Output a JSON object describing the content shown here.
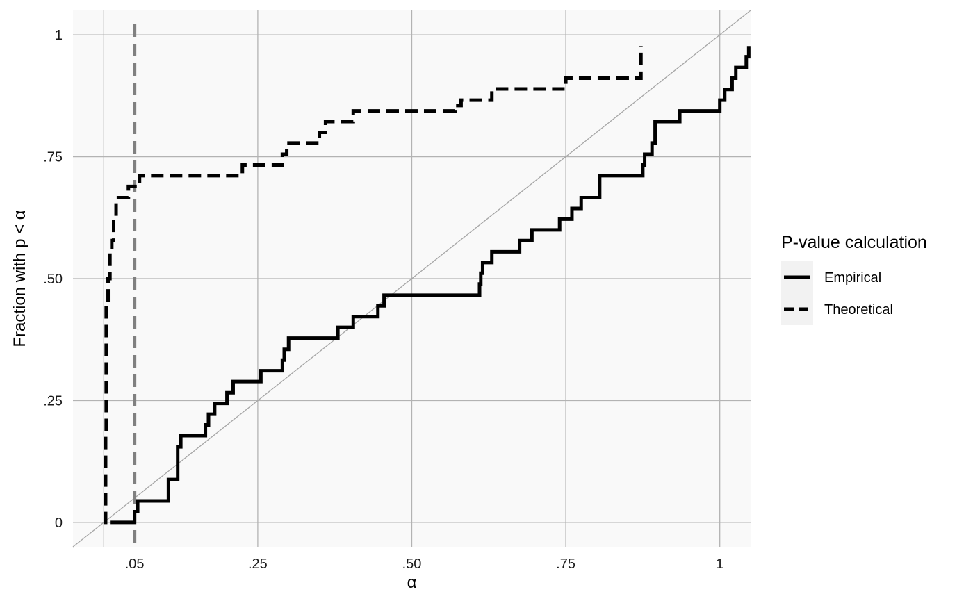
{
  "chart_data": {
    "type": "line",
    "title": "",
    "xlabel": "α",
    "ylabel": "Fraction with p < α",
    "xlim": [
      -0.05,
      1.05
    ],
    "ylim": [
      -0.05,
      1.05
    ],
    "x_ticks": [
      {
        "value": 0.05,
        "label": ".05"
      },
      {
        "value": 0.25,
        "label": ".25"
      },
      {
        "value": 0.5,
        "label": ".50"
      },
      {
        "value": 0.75,
        "label": ".75"
      },
      {
        "value": 1.0,
        "label": "1"
      }
    ],
    "x_gridlines": [
      0,
      0.25,
      0.5,
      0.75,
      1.0
    ],
    "y_ticks": [
      {
        "value": 0,
        "label": "0"
      },
      {
        "value": 0.25,
        "label": ".25"
      },
      {
        "value": 0.5,
        "label": ".50"
      },
      {
        "value": 0.75,
        "label": ".75"
      },
      {
        "value": 1.0,
        "label": "1"
      }
    ],
    "grid": true,
    "reference_line": {
      "type": "identity",
      "color": "#a6a6a6"
    },
    "vline": {
      "x": 0.05,
      "color": "#808080",
      "style": "dashed"
    },
    "legend": {
      "title": "P-value calculation",
      "position": "right",
      "entries": [
        "Empirical",
        "Theoretical"
      ]
    },
    "series": [
      {
        "name": "Empirical",
        "style": "solid",
        "color": "#000000",
        "steps": [
          [
            0.01,
            0.0
          ],
          [
            0.05,
            0.022
          ],
          [
            0.055,
            0.044
          ],
          [
            0.105,
            0.088
          ],
          [
            0.12,
            0.155
          ],
          [
            0.125,
            0.178
          ],
          [
            0.165,
            0.2
          ],
          [
            0.17,
            0.222
          ],
          [
            0.18,
            0.244
          ],
          [
            0.2,
            0.266
          ],
          [
            0.21,
            0.289
          ],
          [
            0.255,
            0.311
          ],
          [
            0.29,
            0.333
          ],
          [
            0.293,
            0.355
          ],
          [
            0.3,
            0.378
          ],
          [
            0.38,
            0.4
          ],
          [
            0.405,
            0.422
          ],
          [
            0.445,
            0.444
          ],
          [
            0.455,
            0.466
          ],
          [
            0.61,
            0.489
          ],
          [
            0.612,
            0.511
          ],
          [
            0.615,
            0.533
          ],
          [
            0.63,
            0.555
          ],
          [
            0.675,
            0.578
          ],
          [
            0.695,
            0.6
          ],
          [
            0.74,
            0.622
          ],
          [
            0.76,
            0.644
          ],
          [
            0.775,
            0.666
          ],
          [
            0.805,
            0.711
          ],
          [
            0.875,
            0.733
          ],
          [
            0.878,
            0.755
          ],
          [
            0.89,
            0.778
          ],
          [
            0.895,
            0.822
          ],
          [
            0.935,
            0.844
          ],
          [
            1.0,
            0.866
          ],
          [
            1.008,
            0.888
          ],
          [
            1.02,
            0.911
          ],
          [
            1.026,
            0.933
          ],
          [
            1.043,
            0.955
          ],
          [
            1.047,
            0.977
          ]
        ],
        "x_end": 1.047
      },
      {
        "name": "Theoretical",
        "style": "dashed",
        "color": "#000000",
        "steps": [
          [
            0.0,
            0.0
          ],
          [
            0.003,
            0.18
          ],
          [
            0.004,
            0.44
          ],
          [
            0.007,
            0.5
          ],
          [
            0.01,
            0.555
          ],
          [
            0.013,
            0.578
          ],
          [
            0.016,
            0.622
          ],
          [
            0.02,
            0.666
          ],
          [
            0.04,
            0.689
          ],
          [
            0.058,
            0.711
          ],
          [
            0.225,
            0.733
          ],
          [
            0.29,
            0.755
          ],
          [
            0.297,
            0.778
          ],
          [
            0.35,
            0.8
          ],
          [
            0.36,
            0.822
          ],
          [
            0.405,
            0.844
          ],
          [
            0.57,
            0.855
          ],
          [
            0.58,
            0.866
          ],
          [
            0.63,
            0.889
          ],
          [
            0.75,
            0.911
          ],
          [
            0.872,
            0.977
          ]
        ],
        "x_end": 0.872
      }
    ]
  }
}
